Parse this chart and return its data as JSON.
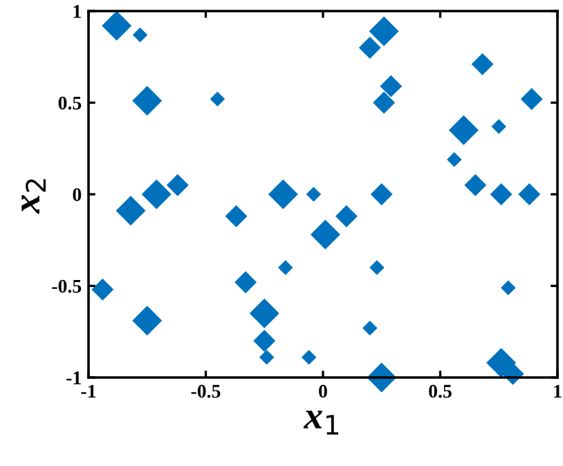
{
  "chart_data": {
    "type": "bubble",
    "xlabel": "x$_{1}$",
    "ylabel": "x$_{2}$",
    "marker": "diamond",
    "grid": false,
    "xlim": [
      -1,
      1
    ],
    "ylim": [
      -1,
      1
    ],
    "xticks": [
      -1,
      -0.5,
      0,
      0.5,
      1
    ],
    "yticks": [
      -1,
      -0.5,
      0,
      0.5,
      1
    ],
    "series": [
      {
        "color": "#0072bd",
        "x": [
          -0.88,
          -0.78,
          -0.75,
          -0.45,
          -0.71,
          -0.62,
          -0.82,
          -0.37,
          -0.17,
          -0.04,
          0.1,
          0.01,
          -0.33,
          -0.16,
          -0.94,
          -0.75,
          -0.25,
          -0.25,
          -0.24,
          -0.06,
          0.23,
          0.2,
          0.25,
          0.26,
          0.2,
          0.29,
          0.26,
          0.68,
          0.89,
          0.6,
          0.75,
          0.56,
          0.65,
          0.76,
          0.88,
          0.25,
          0.79,
          0.76,
          0.81
        ],
        "values": [
          0.92,
          0.87,
          0.51,
          0.52,
          0.0,
          0.05,
          -0.09,
          -0.12,
          0.0,
          0.0,
          -0.12,
          -0.22,
          -0.48,
          -0.4,
          -0.52,
          -0.69,
          -0.65,
          -0.8,
          -0.89,
          -0.89,
          -0.4,
          -0.73,
          -1.0,
          0.89,
          0.8,
          0.59,
          0.5,
          0.71,
          0.52,
          0.35,
          0.37,
          0.19,
          0.05,
          0.0,
          0.0,
          0.0,
          -0.51,
          -0.92,
          -0.98
        ],
        "sizes": [
          1,
          0.25,
          1,
          0.25,
          1,
          0.55,
          1,
          0.55,
          1,
          0.25,
          0.55,
          1,
          0.55,
          0.25,
          0.55,
          1,
          1,
          0.55,
          0.25,
          0.25,
          0.25,
          0.25,
          1,
          1,
          0.55,
          0.55,
          0.55,
          0.55,
          0.55,
          1,
          0.25,
          0.25,
          0.55,
          0.55,
          0.55,
          0.55,
          0.25,
          1,
          0.55
        ]
      }
    ]
  }
}
